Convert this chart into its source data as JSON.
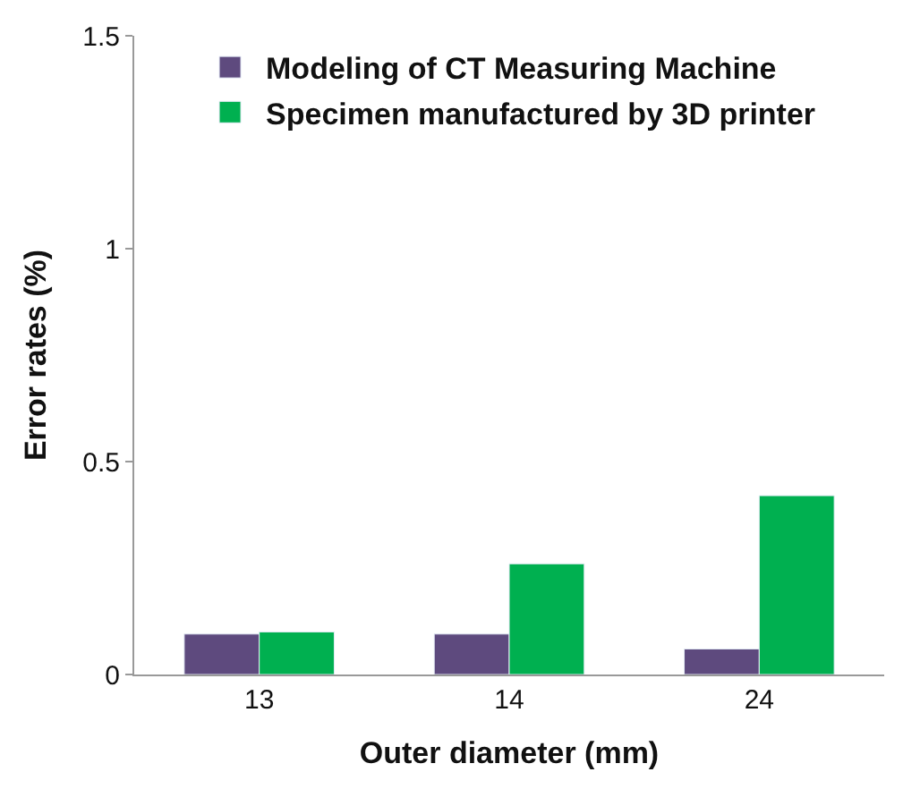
{
  "chart_data": {
    "type": "bar",
    "xlabel": "Outer diameter (mm)",
    "ylabel": "Error rates (%)",
    "categories": [
      "13",
      "14",
      "24"
    ],
    "series": [
      {
        "name": "Modeling of CT Measuring Machine",
        "color": "#5e4a7e",
        "values": [
          0.095,
          0.095,
          0.06
        ]
      },
      {
        "name": "Specimen manufactured by 3D printer",
        "color": "#00b050",
        "values": [
          0.1,
          0.26,
          0.42
        ]
      }
    ],
    "ylim": [
      0,
      1.5
    ],
    "yticks": [
      0,
      0.5,
      1,
      1.5
    ],
    "legend": "top"
  }
}
